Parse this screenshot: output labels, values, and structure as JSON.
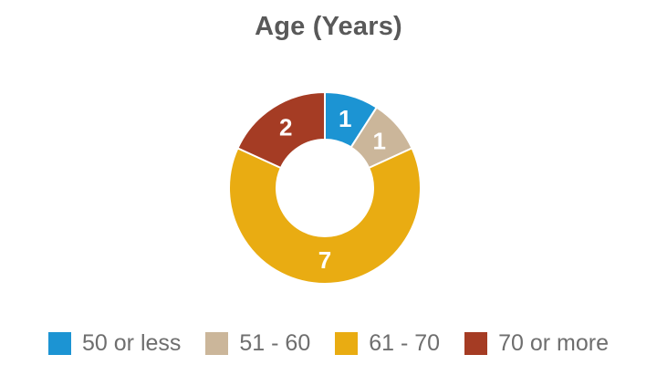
{
  "title": "Age (Years)",
  "chart_data": {
    "type": "pie",
    "subtype": "donut",
    "title": "Age (Years)",
    "categories": [
      "50 or less",
      "51 - 60",
      "61 - 70",
      "70 or more"
    ],
    "values": [
      1,
      1,
      7,
      2
    ],
    "total": 11,
    "colors": [
      "#1C94D3",
      "#CBB69A",
      "#E9AC12",
      "#A53C24"
    ],
    "value_label_color": "#FFFFFF",
    "start_angle_deg": 0,
    "direction": "clockwise",
    "inner_radius_ratio": 0.5,
    "separator_color": "#FFFFFF",
    "legend_position": "bottom",
    "legend_text_color": "#6E6E6E",
    "title_color": "#595959"
  }
}
